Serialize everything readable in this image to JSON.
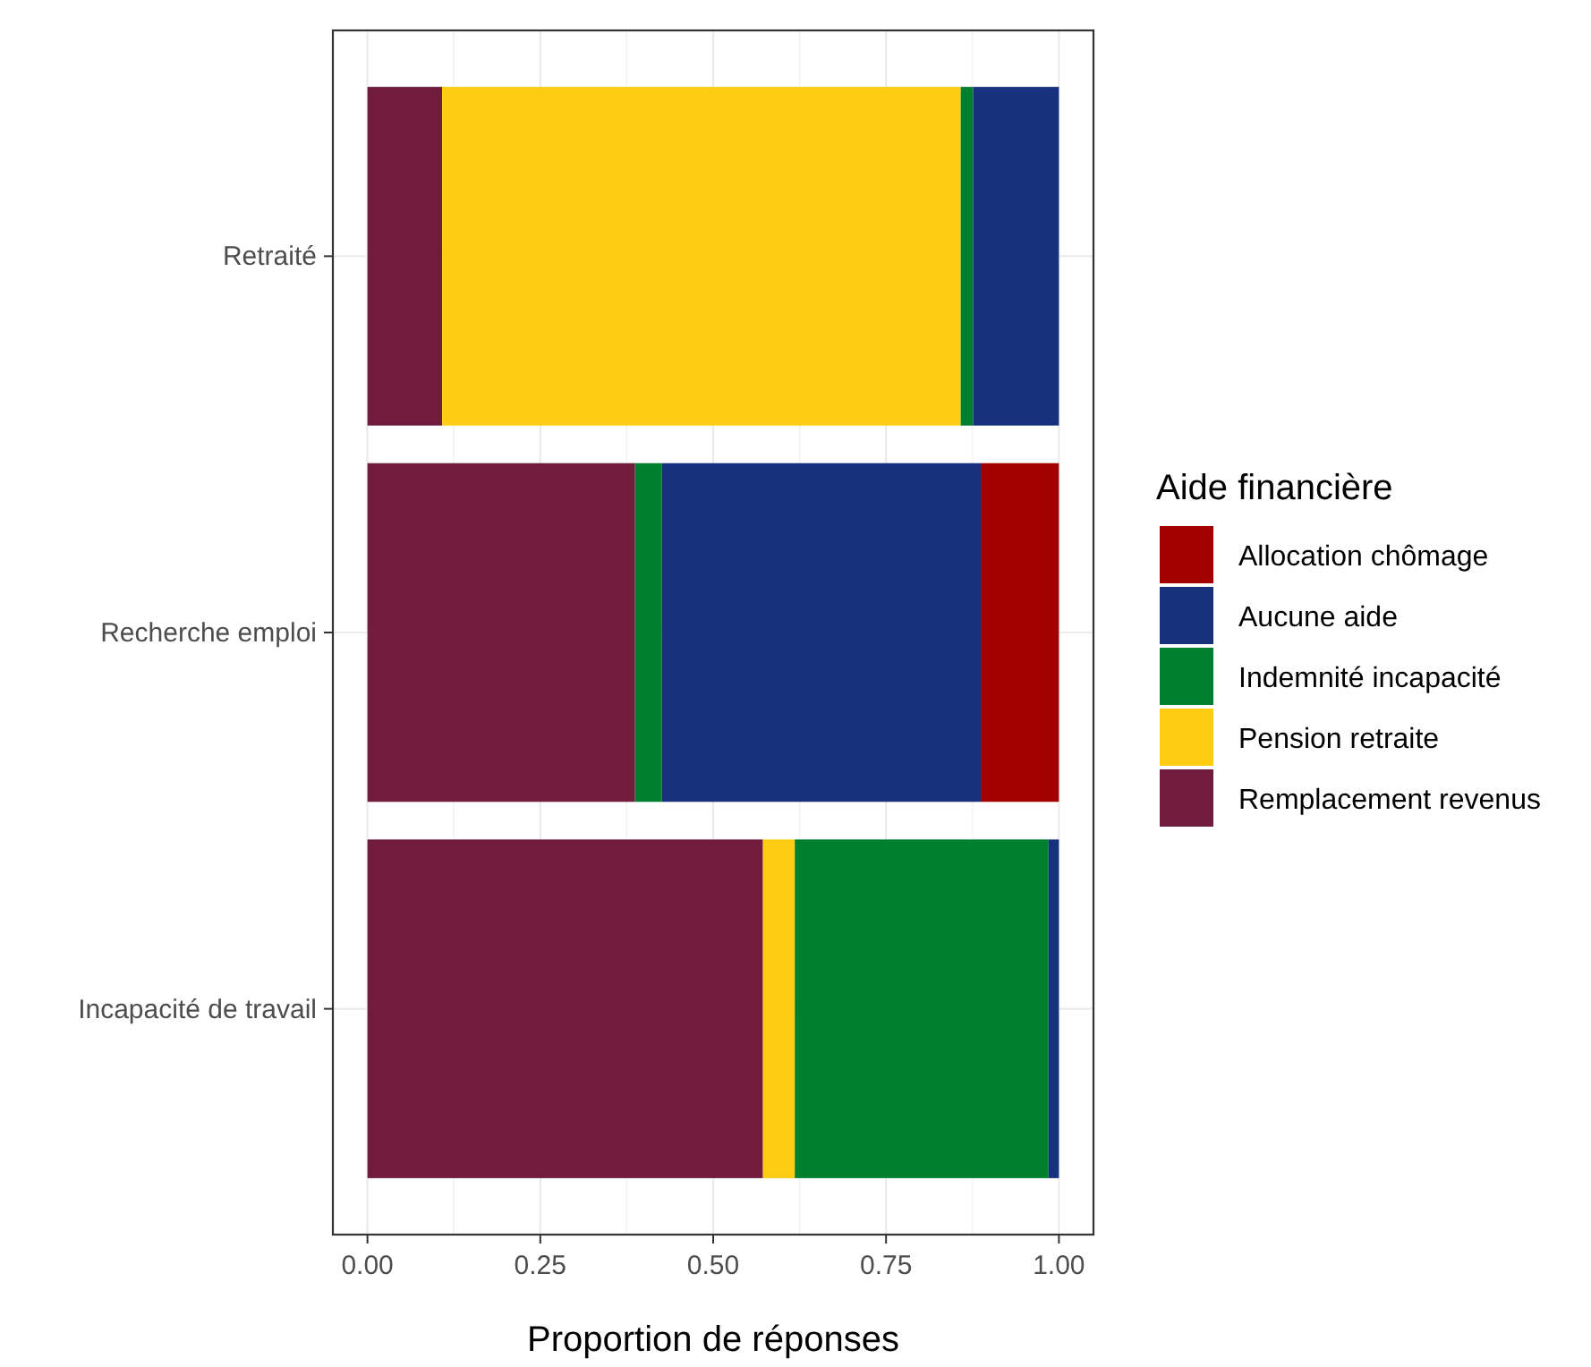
{
  "chart_data": {
    "type": "bar",
    "orientation": "horizontal",
    "stacked": true,
    "xlabel": "Proportion de réponses",
    "legend_title": "Aide financière",
    "legend": "right",
    "grid": true,
    "categories": [
      "Retraité",
      "Recherche emploi",
      "Incapacité de travail"
    ],
    "xlim": [
      -0.05,
      1.05
    ],
    "xticks": [
      {
        "value": 0,
        "label": "0.00"
      },
      {
        "value": 0.25,
        "label": "0.25"
      },
      {
        "value": 0.5,
        "label": "0.50"
      },
      {
        "value": 0.75,
        "label": "0.75"
      },
      {
        "value": 1,
        "label": "1.00"
      }
    ],
    "series": [
      {
        "name": "Remplacement revenus",
        "color": "#721c3d",
        "values": [
          0.108,
          0.387,
          0.572
        ]
      },
      {
        "name": "Pension retraite",
        "color": "#ffcc14",
        "values": [
          0.75,
          0,
          0.046
        ]
      },
      {
        "name": "Indemnité incapacité",
        "color": "#007f2f",
        "values": [
          0.018,
          0.039,
          0.367
        ]
      },
      {
        "name": "Aucune aide",
        "color": "#17317f",
        "values": [
          0.124,
          0.461,
          0.015
        ]
      },
      {
        "name": "Allocation chômage",
        "color": "#a50000",
        "values": [
          0,
          0.113,
          0
        ]
      }
    ]
  }
}
